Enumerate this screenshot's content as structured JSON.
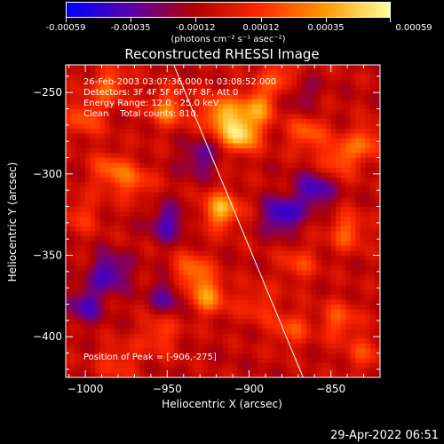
{
  "colorbar": {
    "tick_labels": [
      "-0.00059",
      "-0.00035",
      "-0.00012",
      "0.00012",
      "0.00035",
      "0.00059"
    ],
    "unit": "(photons cm⁻² s⁻¹ asec⁻²)",
    "colormap": [
      "#0000ff",
      "#5a00aa",
      "#b40000",
      "#ff2a00",
      "#ff9a00",
      "#ffff9a"
    ]
  },
  "annotations": {
    "line1": "26-Feb-2003 03:07:36.000 to 03:08:52.000",
    "line2": "Detectors: 3F 4F 5F 6F 7F 8F, Att 0",
    "line3": "Energy Range: 12.0 - 25.0 keV",
    "line4": "Clean    Total counts: 810.",
    "peak": "Position of Peak = [-906,-275]"
  },
  "timestamp": "29-Apr-2022 06:51",
  "chart_data": {
    "type": "heatmap",
    "title": "Reconstructed RHESSI Image",
    "xlabel": "Heliocentric X (arcsec)",
    "ylabel": "Heliocentric Y (arcsec)",
    "xlim": [
      -1012,
      -820
    ],
    "ylim": [
      -425,
      -233
    ],
    "x_ticks": [
      -1000,
      -950,
      -900,
      -850
    ],
    "y_ticks": [
      -250,
      -300,
      -350,
      -400
    ],
    "x_tick_labels": [
      "−1000",
      "−950",
      "−900",
      "−850"
    ],
    "y_tick_labels": [
      "−250",
      "−300",
      "−350",
      "−400"
    ],
    "value_range": [
      -0.00059,
      0.00059
    ],
    "peak_position": [
      -906,
      -275
    ],
    "limb_line": [
      [
        -946,
        -233
      ],
      [
        -867,
        -425
      ]
    ],
    "bright_sources": [
      {
        "x": -905,
        "y": -275,
        "value": 0.00059
      },
      {
        "x": -918,
        "y": -263,
        "value": 0.00045
      },
      {
        "x": -895,
        "y": -258,
        "value": 0.0004
      },
      {
        "x": -950,
        "y": -260,
        "value": 0.00035
      },
      {
        "x": -985,
        "y": -245,
        "value": 0.0003
      },
      {
        "x": -1000,
        "y": -265,
        "value": 0.00028
      },
      {
        "x": -985,
        "y": -298,
        "value": 0.0003
      },
      {
        "x": -970,
        "y": -305,
        "value": 0.00025
      },
      {
        "x": -1003,
        "y": -325,
        "value": 0.0002
      },
      {
        "x": -917,
        "y": -322,
        "value": 0.00048
      },
      {
        "x": -935,
        "y": -360,
        "value": 0.00035
      },
      {
        "x": -925,
        "y": -375,
        "value": 0.00038
      },
      {
        "x": -955,
        "y": -398,
        "value": 0.00025
      },
      {
        "x": -980,
        "y": -415,
        "value": 0.0002
      },
      {
        "x": -865,
        "y": -275,
        "value": 0.0003
      },
      {
        "x": -845,
        "y": -290,
        "value": 0.00032
      },
      {
        "x": -828,
        "y": -280,
        "value": 0.00028
      },
      {
        "x": -840,
        "y": -335,
        "value": 0.0003
      },
      {
        "x": -845,
        "y": -390,
        "value": 0.00028
      },
      {
        "x": -830,
        "y": -410,
        "value": 0.0002
      },
      {
        "x": -875,
        "y": -395,
        "value": 0.00025
      },
      {
        "x": -895,
        "y": -380,
        "value": 0.0002
      },
      {
        "x": -870,
        "y": -355,
        "value": 0.00022
      },
      {
        "x": -880,
        "y": -240,
        "value": 0.0003
      }
    ],
    "dark_regions": [
      {
        "x": -930,
        "y": -290,
        "value": -0.00025
      },
      {
        "x": -950,
        "y": -330,
        "value": -0.0003
      },
      {
        "x": -985,
        "y": -360,
        "value": -0.00035
      },
      {
        "x": -1000,
        "y": -380,
        "value": -0.0003
      },
      {
        "x": -880,
        "y": -325,
        "value": -0.0004
      },
      {
        "x": -860,
        "y": -310,
        "value": -0.00035
      },
      {
        "x": -950,
        "y": -375,
        "value": -0.00025
      },
      {
        "x": -870,
        "y": -250,
        "value": -0.0002
      }
    ]
  }
}
